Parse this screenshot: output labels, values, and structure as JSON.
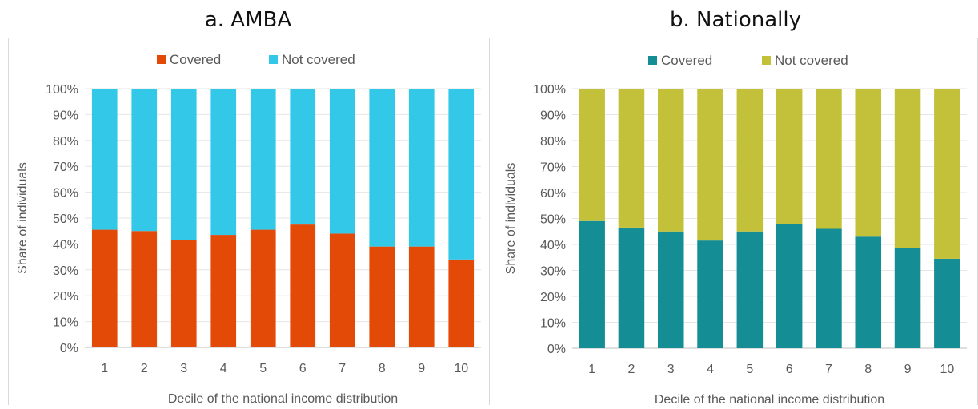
{
  "panels": [
    {
      "heading": "a. AMBA",
      "colors": {
        "covered": "#e34a07",
        "not_covered": "#33c8e8"
      }
    },
    {
      "heading": "b. Nationally",
      "colors": {
        "covered": "#158d94",
        "not_covered": "#c3c13a"
      }
    }
  ],
  "chart_data": [
    {
      "type": "bar",
      "stacked": true,
      "title": "a. AMBA",
      "xlabel": "Decile of the national income distribution",
      "ylabel": "Share of individuals",
      "ylim": [
        0,
        100
      ],
      "y_ticks": [
        "0%",
        "10%",
        "20%",
        "30%",
        "40%",
        "50%",
        "60%",
        "70%",
        "80%",
        "90%",
        "100%"
      ],
      "categories": [
        "1",
        "2",
        "3",
        "4",
        "5",
        "6",
        "7",
        "8",
        "9",
        "10"
      ],
      "legend_position": "top",
      "grid": true,
      "series": [
        {
          "name": "Covered",
          "values": [
            45.5,
            45,
            41.5,
            43.5,
            45.5,
            47.5,
            44,
            39,
            39,
            34
          ]
        },
        {
          "name": "Not covered",
          "values": [
            54.5,
            55,
            58.5,
            56.5,
            54.5,
            52.5,
            56,
            61,
            61,
            66
          ]
        }
      ]
    },
    {
      "type": "bar",
      "stacked": true,
      "title": "b. Nationally",
      "xlabel": "Decile of the national income distribution",
      "ylabel": "Share of individuals",
      "ylim": [
        0,
        100
      ],
      "y_ticks": [
        "0%",
        "10%",
        "20%",
        "30%",
        "40%",
        "50%",
        "60%",
        "70%",
        "80%",
        "90%",
        "100%"
      ],
      "categories": [
        "1",
        "2",
        "3",
        "4",
        "5",
        "6",
        "7",
        "8",
        "9",
        "10"
      ],
      "legend_position": "top",
      "grid": true,
      "series": [
        {
          "name": "Covered",
          "values": [
            49,
            46.5,
            45,
            41.5,
            45,
            48,
            46,
            43,
            38.5,
            34.5
          ]
        },
        {
          "name": "Not covered",
          "values": [
            51,
            53.5,
            55,
            58.5,
            55,
            52,
            54,
            57,
            61.5,
            65.5
          ]
        }
      ]
    }
  ]
}
